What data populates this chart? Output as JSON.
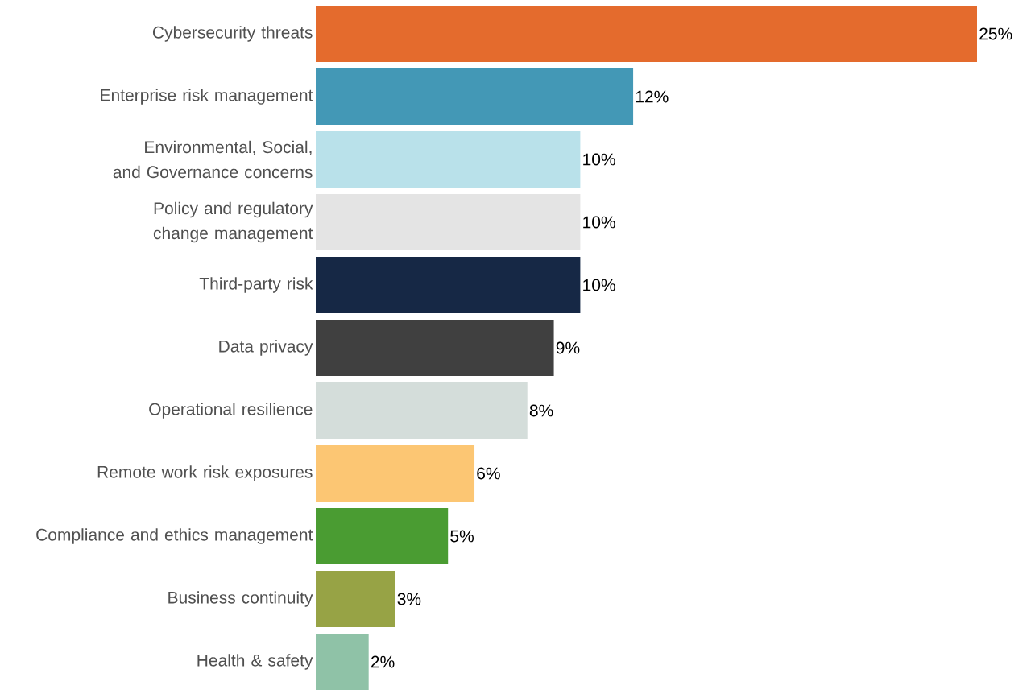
{
  "chart_data": {
    "type": "bar",
    "orientation": "horizontal",
    "categories": [
      "Cybersecurity threats",
      "Enterprise risk management",
      "Environmental, Social, and Governance concerns",
      "Policy and regulatory change management",
      "Third-party risk",
      "Data privacy",
      "Operational resilience",
      "Remote work risk exposures",
      "Compliance and ethics management",
      "Business continuity",
      "Health & safety"
    ],
    "values": [
      25,
      12,
      10,
      10,
      10,
      9,
      8,
      6,
      5,
      3,
      2
    ],
    "value_labels": [
      "25%",
      "12%",
      "10%",
      "10%",
      "10%",
      "9%",
      "8%",
      "6%",
      "5%",
      "3%",
      "2%"
    ],
    "colors": [
      "#e46b2d",
      "#4398b6",
      "#b9e1ea",
      "#e4e4e4",
      "#162845",
      "#404040",
      "#d4ddda",
      "#fcc673",
      "#4a9c32",
      "#97a345",
      "#8fc2a7"
    ]
  }
}
